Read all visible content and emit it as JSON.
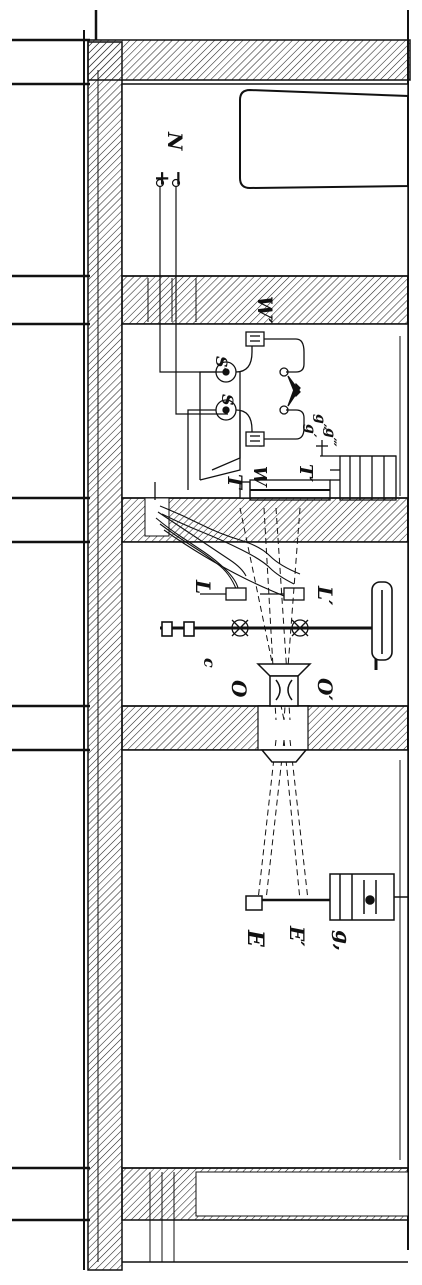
{
  "labels": {
    "N": "N",
    "plus": "+",
    "minus": "−",
    "W_prime_top": "W′",
    "S": "S",
    "S_prime": "S′",
    "W": "W",
    "T": "T",
    "T_prime": "T′",
    "g_prime": "g′",
    "g_double": "g″",
    "g_triple": "g‴",
    "L": "L",
    "L_prime": "L′",
    "c": "c",
    "O": "O",
    "O_prime": "O′",
    "E": "E",
    "E_prime": "E′",
    "g_bottom": "g,"
  },
  "colors": {
    "ink": "#111111",
    "paper": "#ffffff"
  }
}
